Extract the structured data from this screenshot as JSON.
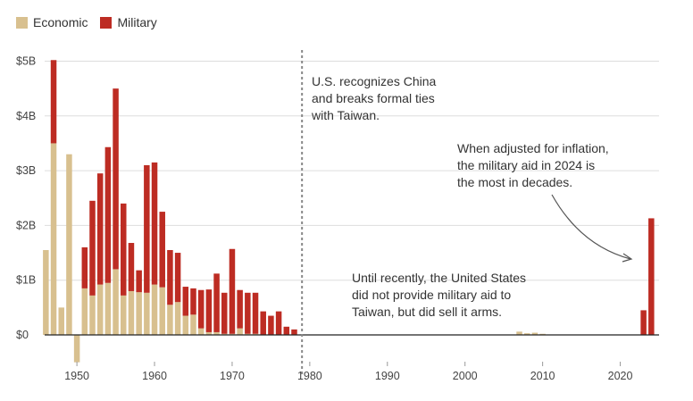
{
  "legend": {
    "economic_label": "Economic",
    "military_label": "Military"
  },
  "colors": {
    "economic": "#d8c08f",
    "military": "#bd2c23",
    "grid": "#dddddd",
    "axis": "#222222",
    "divider": "#888888",
    "arrow": "#555555"
  },
  "chart_data": {
    "type": "bar",
    "stacked": true,
    "title": "",
    "xlabel": "",
    "ylabel": "",
    "xlim": [
      1945.5,
      2025
    ],
    "ylim": [
      -0.5,
      5.2
    ],
    "y_ticks": [
      0,
      1,
      2,
      3,
      4,
      5
    ],
    "y_tick_labels": [
      "$0",
      "$1B",
      "$2B",
      "$3B",
      "$4B",
      "$5B"
    ],
    "x_ticks": [
      1950,
      1960,
      1970,
      1980,
      1990,
      2000,
      2010,
      2020
    ],
    "x_tick_labels": [
      "1950",
      "1960",
      "1970",
      "1980",
      "1990",
      "2000",
      "2010",
      "2020"
    ],
    "grid": true,
    "legend_position": "top-left",
    "x": [
      1946,
      1947,
      1948,
      1949,
      1950,
      1951,
      1952,
      1953,
      1954,
      1955,
      1956,
      1957,
      1958,
      1959,
      1960,
      1961,
      1962,
      1963,
      1964,
      1965,
      1966,
      1967,
      1968,
      1969,
      1970,
      1971,
      1972,
      1973,
      1974,
      1975,
      1976,
      1977,
      1978,
      2007,
      2008,
      2009,
      2010,
      2023,
      2024
    ],
    "series": [
      {
        "name": "Economic",
        "values": [
          1.55,
          3.5,
          0.5,
          3.3,
          -0.5,
          0.85,
          0.72,
          0.92,
          0.95,
          1.2,
          0.72,
          0.8,
          0.78,
          0.77,
          0.92,
          0.87,
          0.55,
          0.6,
          0.35,
          0.37,
          0.12,
          0.05,
          0.05,
          0.02,
          0.02,
          0.12,
          0.02,
          0.02,
          0.0,
          0.0,
          0.0,
          0.0,
          0.0,
          0.06,
          0.03,
          0.04,
          0.02,
          0.0,
          0.0
        ]
      },
      {
        "name": "Military",
        "values": [
          0.0,
          1.52,
          0.0,
          0.0,
          0.0,
          0.75,
          1.73,
          2.03,
          2.48,
          3.3,
          1.68,
          0.88,
          0.4,
          2.33,
          2.23,
          1.38,
          1.0,
          0.9,
          0.53,
          0.48,
          0.7,
          0.78,
          1.07,
          0.75,
          1.55,
          0.7,
          0.75,
          0.75,
          0.43,
          0.35,
          0.43,
          0.15,
          0.1,
          0.0,
          0.0,
          0.0,
          0.0,
          0.45,
          2.13
        ]
      }
    ],
    "divider_year": 1979,
    "annotations": [
      {
        "lines": [
          "U.S. recognizes China",
          "and breaks formal ties",
          "with Taiwan."
        ]
      },
      {
        "lines": [
          "When adjusted for inflation,",
          "the military aid in 2024 is",
          "the most in decades."
        ]
      },
      {
        "lines": [
          "Until recently, the United States",
          "did not provide military aid to",
          "Taiwan, but did sell it arms."
        ]
      }
    ]
  }
}
